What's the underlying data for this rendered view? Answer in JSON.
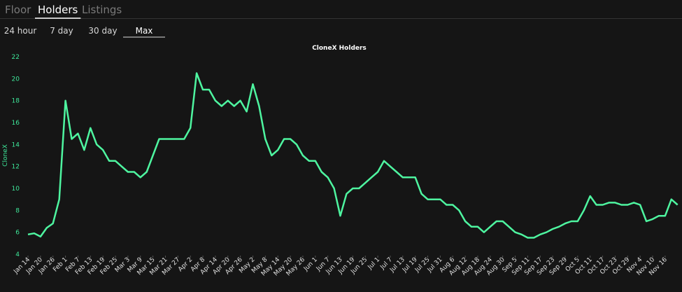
{
  "tabs": [
    "Floor",
    "Holders",
    "Listings"
  ],
  "active_tab": 1,
  "ranges": [
    "24 hour",
    "7 day",
    "30 day",
    "Max"
  ],
  "active_range": 3,
  "chart_data": {
    "type": "line",
    "title": "CloneX Holders",
    "y_label": "CloneX",
    "categories": [
      "Jan 14",
      null,
      "Jan 20",
      null,
      "Jan 26",
      null,
      "Feb 1",
      null,
      "Feb 7",
      null,
      "Feb 13",
      null,
      "Feb 19",
      null,
      "Feb 25",
      null,
      "Mar 3",
      null,
      "Mar 9",
      null,
      "Mar 15",
      null,
      "Mar 21",
      null,
      "Mar 27",
      null,
      "Apr 2",
      null,
      "Apr 8",
      null,
      "Apr 14",
      null,
      "Apr 20",
      null,
      "Apr 26",
      null,
      "May 2",
      null,
      "May 8",
      null,
      "May 14",
      null,
      "May 20",
      null,
      "May 26",
      null,
      "Jun 1",
      null,
      "Jun 7",
      null,
      "Jun 13",
      null,
      "Jun 19",
      null,
      "Jun 25",
      null,
      "Jul 1",
      null,
      "Jul 7",
      null,
      "Jul 13",
      null,
      "Jul 19",
      null,
      "Jul 25",
      null,
      "Jul 31",
      null,
      "Aug 6",
      null,
      "Aug 12",
      null,
      "Aug 18",
      null,
      "Aug 24",
      null,
      "Aug 30",
      null,
      "Sep 5",
      null,
      "Sep 11",
      null,
      "Sep 17",
      null,
      "Sep 23",
      null,
      "Sep 29",
      null,
      "Oct 5",
      null,
      "Oct 11",
      null,
      "Oct 17",
      null,
      "Oct 23",
      null,
      "Oct 29",
      null,
      "Nov 4",
      null,
      "Nov 10",
      null,
      "Nov 16",
      null,
      null
    ],
    "values": [
      5.8,
      5.9,
      5.6,
      6.4,
      6.8,
      9,
      18,
      14.5,
      15,
      13.5,
      15.5,
      14,
      13.5,
      12.5,
      12.5,
      12,
      11.5,
      11.5,
      11,
      11.5,
      13,
      14.5,
      14.5,
      14.5,
      14.5,
      14.5,
      15.5,
      20.5,
      19,
      19,
      18,
      17.5,
      18,
      17.5,
      18,
      17,
      19.5,
      17.5,
      14.5,
      13,
      13.5,
      14.5,
      14.5,
      14,
      13,
      12.5,
      12.5,
      11.5,
      11,
      10,
      7.5,
      9.5,
      10,
      10,
      10.5,
      11,
      11.5,
      12.5,
      12,
      11.5,
      11,
      11,
      11,
      9.5,
      9,
      9,
      9,
      8.5,
      8.5,
      8,
      7,
      6.5,
      6.5,
      6,
      6.5,
      7,
      7,
      6.5,
      6,
      5.8,
      5.5,
      5.5,
      5.8,
      6,
      6.3,
      6.5,
      6.8,
      7,
      7,
      8,
      9.3,
      8.5,
      8.5,
      8.7,
      8.7,
      8.5,
      8.5,
      8.7,
      8.5,
      7,
      7.2,
      7.5,
      7.5,
      9,
      8.5
    ],
    "color": "#4ef5a0",
    "ylim": [
      4,
      22
    ],
    "yticks": [
      4,
      6,
      8,
      10,
      12,
      14,
      16,
      18,
      20,
      22
    ]
  }
}
